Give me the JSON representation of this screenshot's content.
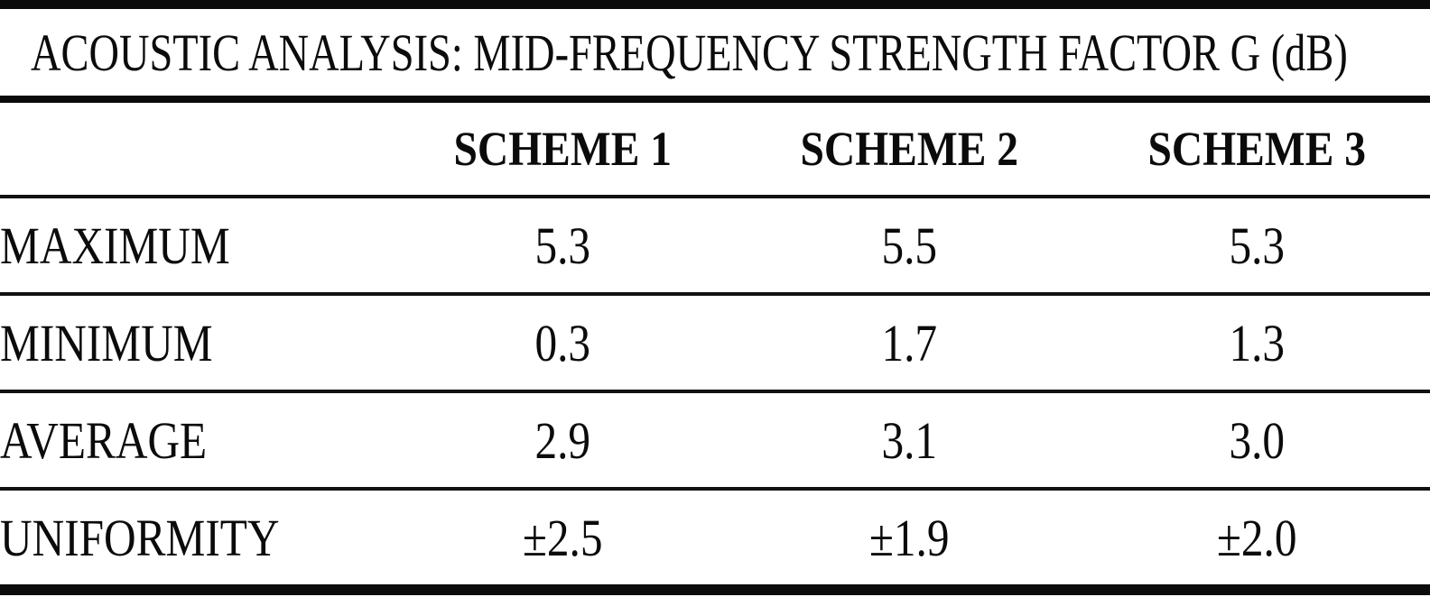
{
  "colors": {
    "text": "#0b0b0b",
    "background": "#ffffff",
    "rule": "#111111"
  },
  "chart_data": {
    "type": "table",
    "title": "ACOUSTIC ANALYSIS: MID-FREQUENCY STRENGTH FACTOR G (dB)",
    "columns": [
      "SCHEME 1",
      "SCHEME 2",
      "SCHEME 3"
    ],
    "rows": [
      {
        "label": "MAXIMUM",
        "values": [
          "5.3",
          "5.5",
          "5.3"
        ]
      },
      {
        "label": "MINIMUM",
        "values": [
          "0.3",
          "1.7",
          "1.3"
        ]
      },
      {
        "label": "AVERAGE",
        "values": [
          "2.9",
          "3.1",
          "3.0"
        ]
      },
      {
        "label": "UNIFORMITY",
        "values": [
          "±2.5",
          "±1.9",
          "±2.0"
        ]
      }
    ]
  }
}
